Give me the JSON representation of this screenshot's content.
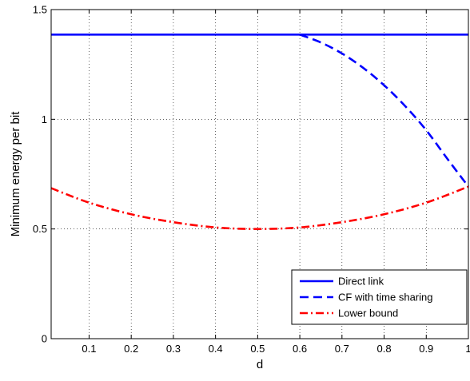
{
  "chart_data": {
    "type": "line",
    "title": "",
    "xlabel": "d",
    "ylabel": "Minimum energy per bit",
    "xlim": [
      0.01,
      1.0
    ],
    "ylim": [
      0,
      1.5
    ],
    "xticks": [
      0.1,
      0.2,
      0.3,
      0.4,
      0.5,
      0.6,
      0.7,
      0.8,
      0.9,
      1.0
    ],
    "xtick_labels": [
      "0.1",
      "0.2",
      "0.3",
      "0.4",
      "0.5",
      "0.6",
      "0.7",
      "0.8",
      "0.9",
      "1"
    ],
    "yticks": [
      0,
      0.5,
      1.0,
      1.5
    ],
    "ytick_labels": [
      "0",
      "0.5",
      "1",
      "1.5"
    ],
    "grid": true,
    "legend_position": "bottom-right",
    "series": [
      {
        "name": "Direct link",
        "color": "#0000ff",
        "style": "solid",
        "x": [
          0.01,
          0.2,
          0.4,
          0.6,
          0.8,
          1.0
        ],
        "y": [
          1.386,
          1.386,
          1.386,
          1.386,
          1.386,
          1.386
        ]
      },
      {
        "name": "CF with time sharing",
        "color": "#0000ff",
        "style": "dashed",
        "x": [
          0.6,
          0.65,
          0.7,
          0.75,
          0.8,
          0.85,
          0.9,
          0.95,
          1.0
        ],
        "y": [
          1.386,
          1.35,
          1.3,
          1.235,
          1.155,
          1.06,
          0.95,
          0.82,
          0.693
        ]
      },
      {
        "name": "Lower bound",
        "color": "#ff0000",
        "style": "dashdot",
        "x": [
          0.01,
          0.1,
          0.2,
          0.3,
          0.4,
          0.5,
          0.6,
          0.7,
          0.8,
          0.9,
          1.0
        ],
        "y": [
          0.686,
          0.62,
          0.567,
          0.531,
          0.507,
          0.5,
          0.507,
          0.531,
          0.567,
          0.62,
          0.693
        ]
      }
    ]
  }
}
